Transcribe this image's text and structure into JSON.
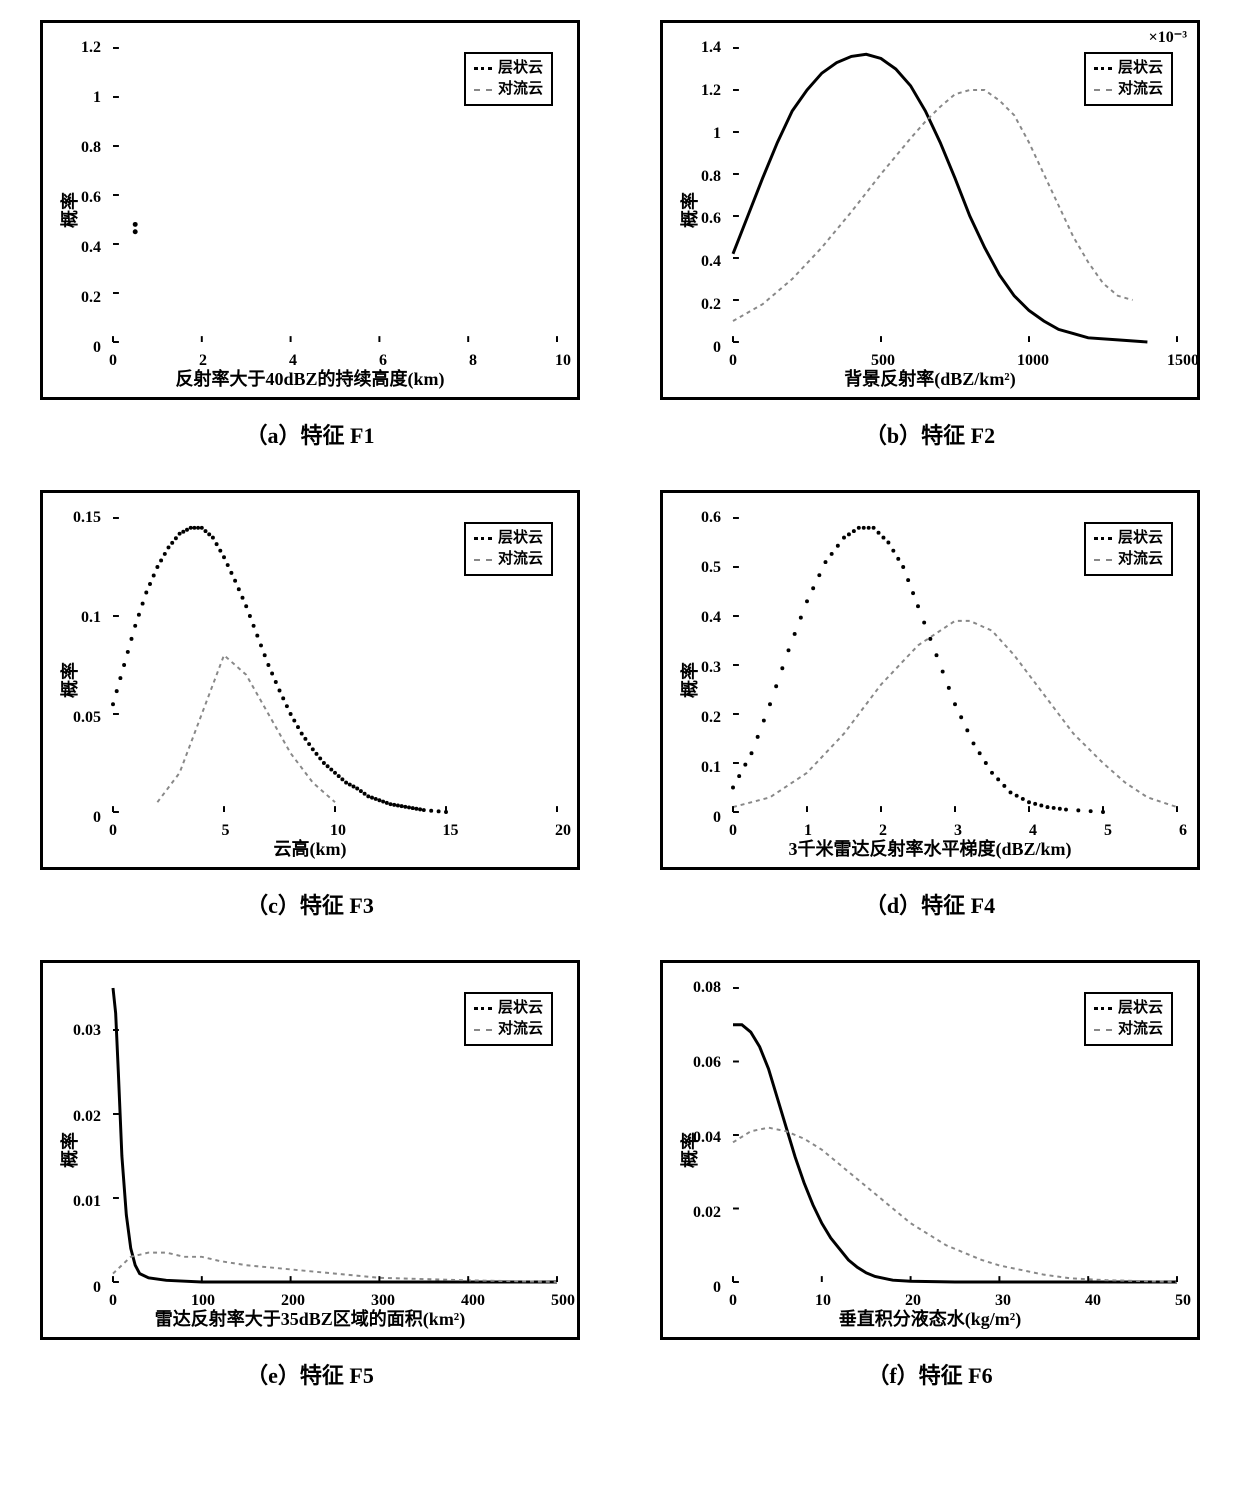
{
  "global": {
    "legend_items": [
      "层状云",
      "对流云"
    ],
    "ylabel": "概率",
    "series_style": {
      "stratiform": {
        "color": "#000000",
        "width": 3,
        "dash": "none",
        "marker": "dot"
      },
      "convective": {
        "color": "#888888",
        "width": 2,
        "dash": "4 4",
        "marker": "none"
      }
    },
    "border_color": "#000000",
    "background_color": "#ffffff",
    "tick_fontsize": 16,
    "label_fontsize": 18,
    "caption_fontsize": 22,
    "legend_fontsize": 15
  },
  "panels": [
    {
      "id": "f1",
      "caption": "（a）特征 F1",
      "xlabel": "反射率大于40dBZ的持续高度(km)",
      "xlim": [
        0,
        10
      ],
      "ylim": [
        0,
        1.2
      ],
      "xticks": [
        0,
        2,
        4,
        6,
        8,
        10
      ],
      "yticks": [
        0,
        0.2,
        0.4,
        0.6,
        0.8,
        1,
        1.2
      ],
      "exponent": null,
      "series": {
        "stratiform": {
          "type": "points",
          "data": [
            [
              0.5,
              0.48
            ],
            [
              0.5,
              0.45
            ]
          ]
        },
        "convective": {
          "type": "line",
          "data": []
        }
      }
    },
    {
      "id": "f2",
      "caption": "（b）特征 F2",
      "xlabel": "背景反射率(dBZ/km²)",
      "xlim": [
        0,
        1500
      ],
      "ylim": [
        0,
        1.4
      ],
      "xticks": [
        0,
        500,
        1000,
        1500
      ],
      "yticks": [
        0,
        0.2,
        0.4,
        0.6,
        0.8,
        1,
        1.2,
        1.4
      ],
      "exponent": "×10⁻³",
      "series": {
        "stratiform": {
          "type": "line",
          "data": [
            [
              0,
              0.42
            ],
            [
              50,
              0.6
            ],
            [
              100,
              0.78
            ],
            [
              150,
              0.95
            ],
            [
              200,
              1.1
            ],
            [
              250,
              1.2
            ],
            [
              300,
              1.28
            ],
            [
              350,
              1.33
            ],
            [
              400,
              1.36
            ],
            [
              450,
              1.37
            ],
            [
              500,
              1.35
            ],
            [
              550,
              1.3
            ],
            [
              600,
              1.22
            ],
            [
              650,
              1.1
            ],
            [
              700,
              0.95
            ],
            [
              750,
              0.78
            ],
            [
              800,
              0.6
            ],
            [
              850,
              0.45
            ],
            [
              900,
              0.32
            ],
            [
              950,
              0.22
            ],
            [
              1000,
              0.15
            ],
            [
              1050,
              0.1
            ],
            [
              1100,
              0.06
            ],
            [
              1150,
              0.04
            ],
            [
              1200,
              0.02
            ],
            [
              1300,
              0.01
            ],
            [
              1400,
              0.0
            ]
          ]
        },
        "convective": {
          "type": "line",
          "data": [
            [
              0,
              0.1
            ],
            [
              100,
              0.18
            ],
            [
              200,
              0.3
            ],
            [
              300,
              0.45
            ],
            [
              400,
              0.62
            ],
            [
              500,
              0.8
            ],
            [
              600,
              0.97
            ],
            [
              650,
              1.05
            ],
            [
              700,
              1.12
            ],
            [
              750,
              1.18
            ],
            [
              800,
              1.2
            ],
            [
              850,
              1.2
            ],
            [
              900,
              1.15
            ],
            [
              950,
              1.08
            ],
            [
              1000,
              0.95
            ],
            [
              1050,
              0.8
            ],
            [
              1100,
              0.65
            ],
            [
              1150,
              0.5
            ],
            [
              1200,
              0.38
            ],
            [
              1250,
              0.28
            ],
            [
              1300,
              0.22
            ],
            [
              1350,
              0.2
            ]
          ]
        }
      }
    },
    {
      "id": "f3",
      "caption": "（c）特征 F3",
      "xlabel": "云高(km)",
      "xlim": [
        0,
        20
      ],
      "ylim": [
        0,
        0.15
      ],
      "xticks": [
        0,
        5,
        10,
        15,
        20
      ],
      "yticks": [
        0,
        0.05,
        0.1,
        0.15
      ],
      "exponent": null,
      "series": {
        "stratiform": {
          "type": "dotted",
          "data": [
            [
              0,
              0.055
            ],
            [
              0.5,
              0.075
            ],
            [
              1,
              0.095
            ],
            [
              1.5,
              0.112
            ],
            [
              2,
              0.125
            ],
            [
              2.5,
              0.135
            ],
            [
              3,
              0.142
            ],
            [
              3.5,
              0.145
            ],
            [
              4,
              0.145
            ],
            [
              4.5,
              0.14
            ],
            [
              5,
              0.13
            ],
            [
              5.5,
              0.118
            ],
            [
              6,
              0.105
            ],
            [
              6.5,
              0.09
            ],
            [
              7,
              0.075
            ],
            [
              7.5,
              0.062
            ],
            [
              8,
              0.05
            ],
            [
              8.5,
              0.04
            ],
            [
              9,
              0.032
            ],
            [
              9.5,
              0.025
            ],
            [
              10,
              0.02
            ],
            [
              10.5,
              0.015
            ],
            [
              11,
              0.012
            ],
            [
              11.5,
              0.008
            ],
            [
              12,
              0.006
            ],
            [
              12.5,
              0.004
            ],
            [
              13,
              0.003
            ],
            [
              13.5,
              0.002
            ],
            [
              14,
              0.001
            ],
            [
              15,
              0.0
            ]
          ]
        },
        "convective": {
          "type": "line",
          "data": [
            [
              2,
              0.005
            ],
            [
              3,
              0.02
            ],
            [
              4,
              0.05
            ],
            [
              5,
              0.08
            ],
            [
              6,
              0.07
            ],
            [
              7,
              0.05
            ],
            [
              8,
              0.03
            ],
            [
              9,
              0.015
            ],
            [
              10,
              0.005
            ]
          ]
        }
      }
    },
    {
      "id": "f4",
      "caption": "（d）特征 F4",
      "xlabel": "3千米雷达反射率水平梯度(dBZ/km)",
      "xlim": [
        0,
        6
      ],
      "ylim": [
        0,
        0.6
      ],
      "xticks": [
        0,
        1,
        2,
        3,
        4,
        5,
        6
      ],
      "yticks": [
        0,
        0.1,
        0.2,
        0.3,
        0.4,
        0.5,
        0.6
      ],
      "exponent": null,
      "series": {
        "stratiform": {
          "type": "dotted",
          "data": [
            [
              0,
              0.05
            ],
            [
              0.25,
              0.12
            ],
            [
              0.5,
              0.22
            ],
            [
              0.75,
              0.33
            ],
            [
              1,
              0.43
            ],
            [
              1.25,
              0.51
            ],
            [
              1.5,
              0.56
            ],
            [
              1.7,
              0.58
            ],
            [
              1.9,
              0.58
            ],
            [
              2.1,
              0.55
            ],
            [
              2.3,
              0.5
            ],
            [
              2.5,
              0.42
            ],
            [
              2.75,
              0.32
            ],
            [
              3,
              0.22
            ],
            [
              3.25,
              0.14
            ],
            [
              3.5,
              0.08
            ],
            [
              3.75,
              0.04
            ],
            [
              4,
              0.02
            ],
            [
              4.25,
              0.01
            ],
            [
              4.5,
              0.005
            ],
            [
              5,
              0.0
            ]
          ]
        },
        "convective": {
          "type": "line",
          "data": [
            [
              0,
              0.01
            ],
            [
              0.5,
              0.03
            ],
            [
              1,
              0.08
            ],
            [
              1.5,
              0.16
            ],
            [
              2,
              0.26
            ],
            [
              2.5,
              0.34
            ],
            [
              2.8,
              0.37
            ],
            [
              3,
              0.39
            ],
            [
              3.2,
              0.39
            ],
            [
              3.5,
              0.37
            ],
            [
              3.8,
              0.32
            ],
            [
              4,
              0.28
            ],
            [
              4.3,
              0.22
            ],
            [
              4.6,
              0.16
            ],
            [
              5,
              0.1
            ],
            [
              5.3,
              0.06
            ],
            [
              5.6,
              0.03
            ],
            [
              6,
              0.01
            ]
          ]
        }
      }
    },
    {
      "id": "f5",
      "caption": "（e）特征 F5",
      "xlabel": "雷达反射率大于35dBZ区域的面积(km²)",
      "xlim": [
        0,
        500
      ],
      "ylim": [
        0,
        0.035
      ],
      "xticks": [
        0,
        100,
        200,
        300,
        400,
        500
      ],
      "yticks": [
        0,
        0.01,
        0.02,
        0.03
      ],
      "exponent": null,
      "series": {
        "stratiform": {
          "type": "line",
          "data": [
            [
              0,
              0.035
            ],
            [
              3,
              0.032
            ],
            [
              6,
              0.025
            ],
            [
              10,
              0.015
            ],
            [
              15,
              0.008
            ],
            [
              20,
              0.004
            ],
            [
              25,
              0.002
            ],
            [
              30,
              0.001
            ],
            [
              40,
              0.0005
            ],
            [
              60,
              0.0002
            ],
            [
              100,
              0.0
            ],
            [
              500,
              0.0
            ]
          ]
        },
        "convective": {
          "type": "line",
          "data": [
            [
              0,
              0.001
            ],
            [
              20,
              0.003
            ],
            [
              40,
              0.0035
            ],
            [
              60,
              0.0035
            ],
            [
              80,
              0.003
            ],
            [
              100,
              0.003
            ],
            [
              120,
              0.0025
            ],
            [
              150,
              0.002
            ],
            [
              200,
              0.0015
            ],
            [
              250,
              0.001
            ],
            [
              300,
              0.0005
            ],
            [
              400,
              0.0002
            ],
            [
              500,
              0.0
            ]
          ]
        }
      }
    },
    {
      "id": "f6",
      "caption": "（f）特征 F6",
      "xlabel": "垂直积分液态水(kg/m²)",
      "xlim": [
        0,
        50
      ],
      "ylim": [
        0,
        0.08
      ],
      "xticks": [
        0,
        10,
        20,
        30,
        40,
        50
      ],
      "yticks": [
        0,
        0.02,
        0.04,
        0.06,
        0.08
      ],
      "exponent": null,
      "series": {
        "stratiform": {
          "type": "line",
          "data": [
            [
              0,
              0.07
            ],
            [
              1,
              0.07
            ],
            [
              2,
              0.068
            ],
            [
              3,
              0.064
            ],
            [
              4,
              0.058
            ],
            [
              5,
              0.05
            ],
            [
              6,
              0.042
            ],
            [
              7,
              0.034
            ],
            [
              8,
              0.027
            ],
            [
              9,
              0.021
            ],
            [
              10,
              0.016
            ],
            [
              11,
              0.012
            ],
            [
              12,
              0.009
            ],
            [
              13,
              0.006
            ],
            [
              14,
              0.004
            ],
            [
              15,
              0.0025
            ],
            [
              16,
              0.0015
            ],
            [
              18,
              0.0005
            ],
            [
              20,
              0.0002
            ],
            [
              25,
              0.0
            ],
            [
              50,
              0.0
            ]
          ]
        },
        "convective": {
          "type": "line",
          "data": [
            [
              0,
              0.038
            ],
            [
              2,
              0.041
            ],
            [
              4,
              0.042
            ],
            [
              6,
              0.041
            ],
            [
              8,
              0.039
            ],
            [
              10,
              0.036
            ],
            [
              12,
              0.032
            ],
            [
              14,
              0.028
            ],
            [
              16,
              0.024
            ],
            [
              18,
              0.02
            ],
            [
              20,
              0.016
            ],
            [
              22,
              0.013
            ],
            [
              24,
              0.01
            ],
            [
              26,
              0.008
            ],
            [
              28,
              0.006
            ],
            [
              30,
              0.0045
            ],
            [
              32,
              0.0035
            ],
            [
              35,
              0.002
            ],
            [
              38,
              0.001
            ],
            [
              42,
              0.0005
            ],
            [
              50,
              0.0
            ]
          ]
        }
      }
    }
  ]
}
